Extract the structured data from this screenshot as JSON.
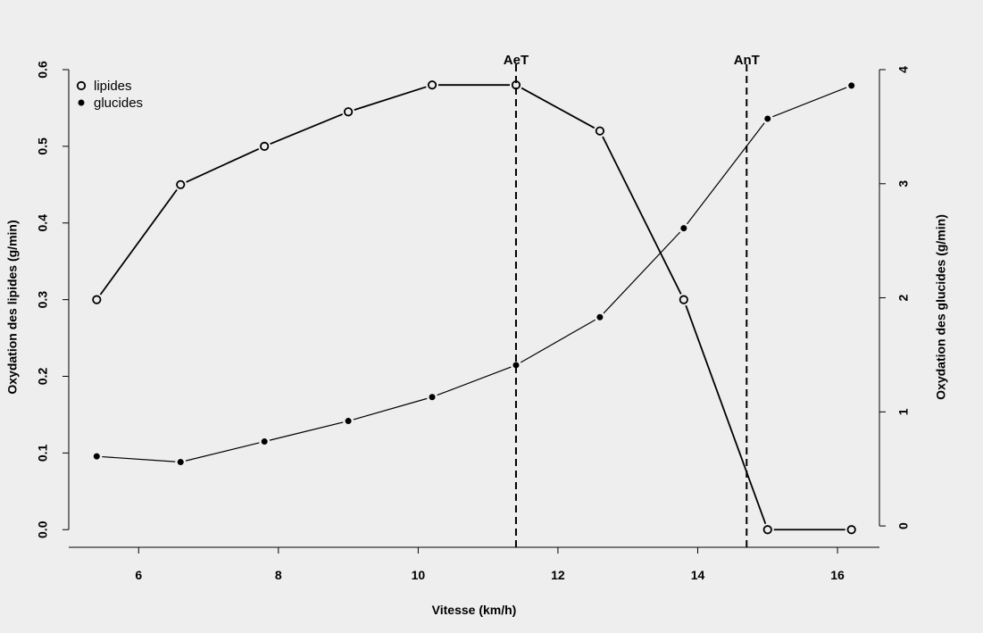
{
  "chart_data": {
    "type": "line",
    "xlabel": "Vitesse (km/h)",
    "ylabel_left": "Oxydation des lipides (g/min)",
    "ylabel_right": "Oxydation des glucides (g/min)",
    "xlim": [
      5,
      16.6
    ],
    "ylim_left": [
      -0.023,
      0.6
    ],
    "ylim_right": [
      -0.187,
      4.0
    ],
    "x_ticks": [
      6,
      8,
      10,
      12,
      14,
      16
    ],
    "y_left_ticks": [
      0.0,
      0.1,
      0.2,
      0.3,
      0.4,
      0.5,
      0.6
    ],
    "y_right_ticks": [
      0,
      1,
      2,
      3,
      4
    ],
    "x_tick_labels": [
      "6",
      "8",
      "10",
      "12",
      "14",
      "16"
    ],
    "y_left_tick_labels": [
      "0.0",
      "0.1",
      "0.2",
      "0.3",
      "0.4",
      "0.5",
      "0.6"
    ],
    "y_right_tick_labels": [
      "0",
      "1",
      "2",
      "3",
      "4"
    ],
    "grid": false,
    "legend_position": "top-left",
    "series": [
      {
        "name": "lipides",
        "axis": "left",
        "marker": "open-circle",
        "x": [
          5.4,
          6.6,
          7.8,
          9.0,
          10.2,
          11.4,
          12.6,
          13.8,
          15.0,
          16.2
        ],
        "y": [
          0.3,
          0.45,
          0.5,
          0.545,
          0.58,
          0.58,
          0.52,
          0.3,
          0.0,
          0.0
        ]
      },
      {
        "name": "glucides",
        "axis": "right",
        "marker": "filled-circle",
        "x": [
          5.4,
          6.6,
          7.8,
          9.0,
          10.2,
          11.4,
          12.6,
          13.8,
          15.0,
          16.2
        ],
        "y": [
          0.61,
          0.56,
          0.74,
          0.92,
          1.13,
          1.41,
          1.83,
          2.61,
          3.57,
          3.86
        ]
      }
    ],
    "vlines": [
      {
        "label": "AeT",
        "x": 11.4
      },
      {
        "label": "AnT",
        "x": 14.7
      }
    ]
  }
}
